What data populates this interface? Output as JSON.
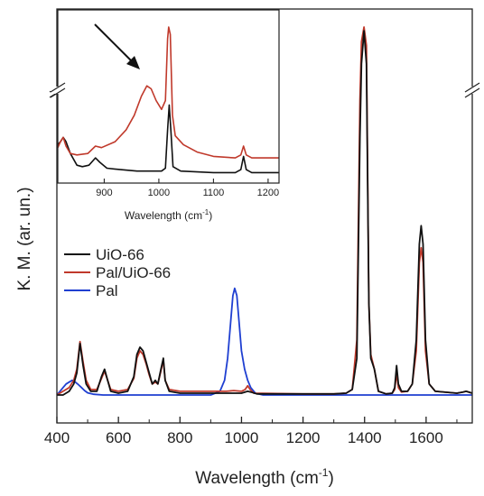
{
  "chart_data": [
    {
      "type": "line",
      "role": "main",
      "xlabel_base": "Wavelength (cm",
      "xlabel_sup": "-1",
      "xlabel_tail": ")",
      "ylabel": "K. M. (ar. un.)",
      "xlim": [
        400,
        1750
      ],
      "x_ticks": [
        400,
        600,
        800,
        1000,
        1200,
        1400,
        1600
      ],
      "y_ticks_labeled": false,
      "y_axis_break": true,
      "legend_position": "left-middle",
      "series": [
        {
          "name": "UiO-66",
          "color": "#111111",
          "points": [
            [
              400,
              0.0
            ],
            [
              420,
              0.0
            ],
            [
              440,
              0.01
            ],
            [
              455,
              0.03
            ],
            [
              465,
              0.06
            ],
            [
              475,
              0.14
            ],
            [
              485,
              0.08
            ],
            [
              495,
              0.03
            ],
            [
              510,
              0.01
            ],
            [
              530,
              0.01
            ],
            [
              545,
              0.05
            ],
            [
              555,
              0.07
            ],
            [
              565,
              0.04
            ],
            [
              575,
              0.01
            ],
            [
              600,
              0.005
            ],
            [
              630,
              0.01
            ],
            [
              650,
              0.05
            ],
            [
              660,
              0.11
            ],
            [
              670,
              0.13
            ],
            [
              680,
              0.12
            ],
            [
              690,
              0.09
            ],
            [
              700,
              0.06
            ],
            [
              710,
              0.03
            ],
            [
              720,
              0.04
            ],
            [
              728,
              0.03
            ],
            [
              738,
              0.07
            ],
            [
              746,
              0.1
            ],
            [
              752,
              0.04
            ],
            [
              765,
              0.01
            ],
            [
              800,
              0.005
            ],
            [
              900,
              0.005
            ],
            [
              1000,
              0.005
            ],
            [
              1020,
              0.01
            ],
            [
              1030,
              0.008
            ],
            [
              1050,
              0.003
            ],
            [
              1200,
              0.003
            ],
            [
              1300,
              0.003
            ],
            [
              1340,
              0.005
            ],
            [
              1360,
              0.015
            ],
            [
              1375,
              0.1
            ],
            [
              1385,
              0.7
            ],
            [
              1390,
              0.9
            ],
            [
              1398,
              0.99
            ],
            [
              1406,
              0.9
            ],
            [
              1414,
              0.25
            ],
            [
              1420,
              0.1
            ],
            [
              1432,
              0.07
            ],
            [
              1445,
              0.01
            ],
            [
              1470,
              0.003
            ],
            [
              1490,
              0.005
            ],
            [
              1498,
              0.02
            ],
            [
              1504,
              0.08
            ],
            [
              1510,
              0.03
            ],
            [
              1520,
              0.01
            ],
            [
              1540,
              0.01
            ],
            [
              1555,
              0.03
            ],
            [
              1568,
              0.15
            ],
            [
              1578,
              0.41
            ],
            [
              1584,
              0.46
            ],
            [
              1590,
              0.41
            ],
            [
              1598,
              0.15
            ],
            [
              1610,
              0.03
            ],
            [
              1630,
              0.01
            ],
            [
              1700,
              0.005
            ],
            [
              1720,
              0.008
            ],
            [
              1730,
              0.01
            ],
            [
              1750,
              0.005
            ]
          ]
        },
        {
          "name": "Pal/UiO-66",
          "color": "#c0392b",
          "points": [
            [
              400,
              0.0
            ],
            [
              420,
              0.01
            ],
            [
              440,
              0.02
            ],
            [
              455,
              0.04
            ],
            [
              465,
              0.07
            ],
            [
              475,
              0.145
            ],
            [
              485,
              0.09
            ],
            [
              495,
              0.04
            ],
            [
              510,
              0.015
            ],
            [
              530,
              0.015
            ],
            [
              545,
              0.045
            ],
            [
              555,
              0.065
            ],
            [
              565,
              0.04
            ],
            [
              575,
              0.015
            ],
            [
              600,
              0.01
            ],
            [
              630,
              0.015
            ],
            [
              650,
              0.045
            ],
            [
              660,
              0.1
            ],
            [
              670,
              0.12
            ],
            [
              680,
              0.11
            ],
            [
              690,
              0.085
            ],
            [
              700,
              0.055
            ],
            [
              710,
              0.03
            ],
            [
              720,
              0.035
            ],
            [
              728,
              0.03
            ],
            [
              738,
              0.065
            ],
            [
              746,
              0.095
            ],
            [
              752,
              0.04
            ],
            [
              765,
              0.015
            ],
            [
              800,
              0.01
            ],
            [
              900,
              0.01
            ],
            [
              950,
              0.01
            ],
            [
              975,
              0.012
            ],
            [
              1000,
              0.01
            ],
            [
              1012,
              0.015
            ],
            [
              1020,
              0.025
            ],
            [
              1028,
              0.015
            ],
            [
              1040,
              0.005
            ],
            [
              1200,
              0.003
            ],
            [
              1300,
              0.003
            ],
            [
              1340,
              0.005
            ],
            [
              1360,
              0.015
            ],
            [
              1375,
              0.15
            ],
            [
              1385,
              0.8
            ],
            [
              1390,
              0.96
            ],
            [
              1398,
              1.0
            ],
            [
              1406,
              0.95
            ],
            [
              1414,
              0.25
            ],
            [
              1420,
              0.11
            ],
            [
              1432,
              0.07
            ],
            [
              1445,
              0.01
            ],
            [
              1470,
              0.003
            ],
            [
              1490,
              0.005
            ],
            [
              1498,
              0.015
            ],
            [
              1504,
              0.06
            ],
            [
              1510,
              0.02
            ],
            [
              1520,
              0.008
            ],
            [
              1540,
              0.01
            ],
            [
              1555,
              0.03
            ],
            [
              1568,
              0.12
            ],
            [
              1578,
              0.36
            ],
            [
              1584,
              0.4
            ],
            [
              1590,
              0.36
            ],
            [
              1598,
              0.12
            ],
            [
              1610,
              0.03
            ],
            [
              1630,
              0.01
            ],
            [
              1700,
              0.005
            ],
            [
              1720,
              0.008
            ],
            [
              1730,
              0.01
            ],
            [
              1750,
              0.005
            ]
          ]
        },
        {
          "name": "Pal",
          "color": "#1f3fd1",
          "points": [
            [
              400,
              0.0
            ],
            [
              410,
              0.01
            ],
            [
              420,
              0.02
            ],
            [
              430,
              0.03
            ],
            [
              440,
              0.035
            ],
            [
              450,
              0.04
            ],
            [
              460,
              0.035
            ],
            [
              470,
              0.028
            ],
            [
              480,
              0.02
            ],
            [
              490,
              0.012
            ],
            [
              500,
              0.006
            ],
            [
              520,
              0.002
            ],
            [
              550,
              0.0
            ],
            [
              900,
              0.0
            ],
            [
              930,
              0.01
            ],
            [
              945,
              0.04
            ],
            [
              955,
              0.1
            ],
            [
              965,
              0.2
            ],
            [
              972,
              0.27
            ],
            [
              978,
              0.29
            ],
            [
              985,
              0.27
            ],
            [
              992,
              0.2
            ],
            [
              1000,
              0.12
            ],
            [
              1010,
              0.07
            ],
            [
              1020,
              0.04
            ],
            [
              1030,
              0.02
            ],
            [
              1045,
              0.005
            ],
            [
              1070,
              0.0
            ],
            [
              1750,
              0.0
            ]
          ]
        }
      ]
    },
    {
      "type": "line",
      "role": "inset",
      "xlabel_base": "Wavelength (cm",
      "xlabel_sup": "-1",
      "xlabel_tail": ")",
      "xlim": [
        815,
        1220
      ],
      "x_ticks": [
        900,
        1000,
        1100,
        1200
      ],
      "y_axis_break": true,
      "annotation": "arrow pointing to broad peak",
      "series": [
        {
          "name": "UiO-66",
          "color": "#111111",
          "points": [
            [
              815,
              0.2
            ],
            [
              820,
              0.22
            ],
            [
              825,
              0.25
            ],
            [
              830,
              0.22
            ],
            [
              838,
              0.14
            ],
            [
              850,
              0.06
            ],
            [
              860,
              0.05
            ],
            [
              872,
              0.06
            ],
            [
              884,
              0.11
            ],
            [
              892,
              0.08
            ],
            [
              905,
              0.04
            ],
            [
              930,
              0.03
            ],
            [
              960,
              0.02
            ],
            [
              990,
              0.02
            ],
            [
              1005,
              0.02
            ],
            [
              1012,
              0.04
            ],
            [
              1016,
              0.3
            ],
            [
              1019,
              0.47
            ],
            [
              1022,
              0.3
            ],
            [
              1026,
              0.05
            ],
            [
              1040,
              0.02
            ],
            [
              1100,
              0.01
            ],
            [
              1140,
              0.01
            ],
            [
              1150,
              0.03
            ],
            [
              1155,
              0.12
            ],
            [
              1160,
              0.03
            ],
            [
              1170,
              0.01
            ],
            [
              1220,
              0.01
            ]
          ]
        },
        {
          "name": "Pal/UiO-66",
          "color": "#c0392b",
          "points": [
            [
              815,
              0.18
            ],
            [
              820,
              0.22
            ],
            [
              825,
              0.25
            ],
            [
              830,
              0.19
            ],
            [
              838,
              0.14
            ],
            [
              850,
              0.13
            ],
            [
              870,
              0.14
            ],
            [
              884,
              0.19
            ],
            [
              895,
              0.18
            ],
            [
              920,
              0.22
            ],
            [
              940,
              0.3
            ],
            [
              955,
              0.4
            ],
            [
              968,
              0.53
            ],
            [
              978,
              0.6
            ],
            [
              986,
              0.58
            ],
            [
              995,
              0.5
            ],
            [
              1005,
              0.44
            ],
            [
              1012,
              0.5
            ],
            [
              1016,
              0.92
            ],
            [
              1018,
              1.0
            ],
            [
              1021,
              0.95
            ],
            [
              1025,
              0.4
            ],
            [
              1030,
              0.26
            ],
            [
              1045,
              0.2
            ],
            [
              1070,
              0.15
            ],
            [
              1100,
              0.12
            ],
            [
              1140,
              0.11
            ],
            [
              1150,
              0.13
            ],
            [
              1155,
              0.19
            ],
            [
              1160,
              0.13
            ],
            [
              1170,
              0.11
            ],
            [
              1220,
              0.11
            ]
          ]
        }
      ]
    }
  ]
}
